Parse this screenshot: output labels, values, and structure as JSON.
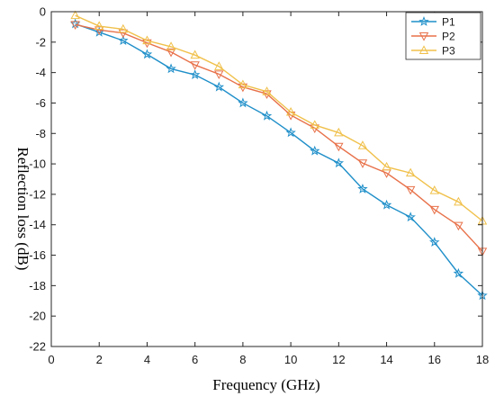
{
  "chart_data": {
    "type": "line",
    "title": "",
    "xlabel": "Frequency (GHz)",
    "ylabel": "Reflection loss (dB)",
    "xlim": [
      0,
      18
    ],
    "ylim": [
      -22,
      0
    ],
    "xticks": [
      0,
      2,
      4,
      6,
      8,
      10,
      12,
      14,
      16,
      18
    ],
    "yticks": [
      0,
      -2,
      -4,
      -6,
      -8,
      -10,
      -12,
      -14,
      -16,
      -18,
      -20,
      -22
    ],
    "grid": false,
    "legend": "top-right",
    "x": [
      1,
      2,
      3,
      4,
      5,
      6,
      7,
      8,
      9,
      10,
      11,
      12,
      13,
      14,
      15,
      16,
      17,
      18
    ],
    "series": [
      {
        "name": "P1",
        "color": "#1f8fc9",
        "marker": "star",
        "values": [
          -0.8,
          -1.35,
          -1.9,
          -2.8,
          -3.75,
          -4.15,
          -4.95,
          -6.0,
          -6.85,
          -7.95,
          -9.15,
          -9.95,
          -11.65,
          -12.7,
          -13.5,
          -15.15,
          -17.2,
          -18.65
        ]
      },
      {
        "name": "P2",
        "color": "#e8714a",
        "marker": "triangle-down",
        "values": [
          -0.85,
          -1.2,
          -1.4,
          -2.05,
          -2.65,
          -3.5,
          -4.1,
          -4.95,
          -5.4,
          -6.8,
          -7.65,
          -8.85,
          -9.95,
          -10.6,
          -11.7,
          -13.0,
          -14.05,
          -15.75
        ]
      },
      {
        "name": "P3",
        "color": "#f0c04a",
        "marker": "triangle-up",
        "values": [
          -0.25,
          -0.95,
          -1.15,
          -1.9,
          -2.3,
          -2.85,
          -3.6,
          -4.8,
          -5.25,
          -6.6,
          -7.45,
          -7.95,
          -8.8,
          -10.2,
          -10.6,
          -11.75,
          -12.5,
          -13.75
        ]
      }
    ]
  }
}
